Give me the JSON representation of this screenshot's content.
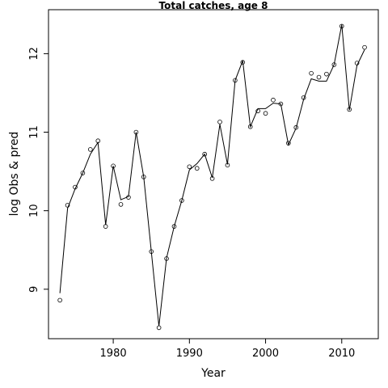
{
  "chart_data": {
    "type": "line",
    "title": "Total catches, age 8",
    "xlabel": "Year",
    "ylabel": "log Obs & pred",
    "xlim": [
      1971.5,
      2014.8
    ],
    "ylim": [
      8.37,
      12.56
    ],
    "x_ticks": [
      1980,
      1990,
      2000,
      2010
    ],
    "y_ticks": [
      9,
      10,
      11,
      12
    ],
    "grid": false,
    "series": [
      {
        "name": "",
        "style": "points",
        "x": [
          1973,
          1974,
          1975,
          1976,
          1977,
          1978,
          1979,
          1980,
          1981,
          1982,
          1983,
          1984,
          1985,
          1986,
          1987,
          1988,
          1989,
          1990,
          1991,
          1992,
          1993,
          1994,
          1995,
          1996,
          1997,
          1998,
          1999,
          2000,
          2001,
          2002,
          2003,
          2004,
          2005,
          2006,
          2007,
          2008,
          2009,
          2010,
          2011,
          2012,
          2013
        ],
        "values": [
          8.86,
          10.07,
          10.3,
          10.48,
          10.78,
          10.89,
          9.8,
          10.57,
          10.08,
          10.17,
          11.0,
          10.43,
          9.48,
          8.51,
          9.39,
          9.8,
          10.13,
          10.56,
          10.54,
          10.72,
          10.41,
          11.13,
          10.58,
          11.66,
          11.89,
          11.07,
          11.27,
          11.24,
          11.41,
          11.36,
          10.86,
          11.06,
          11.44,
          11.75,
          11.7,
          11.74,
          11.86,
          12.35,
          11.29,
          11.88,
          12.08
        ]
      },
      {
        "name": "",
        "style": "line",
        "x": [
          1973,
          1974,
          1975,
          1976,
          1977,
          1978,
          1979,
          1980,
          1981,
          1982,
          1983,
          1984,
          1985,
          1986,
          1987,
          1988,
          1989,
          1990,
          1991,
          1992,
          1993,
          1994,
          1995,
          1996,
          1997,
          1998,
          1999,
          2000,
          2001,
          2002,
          2003,
          2004,
          2005,
          2006,
          2007,
          2008,
          2009,
          2010,
          2011,
          2012,
          2013
        ],
        "values": [
          8.95,
          10.03,
          10.28,
          10.48,
          10.72,
          10.87,
          9.82,
          10.57,
          10.14,
          10.18,
          11.0,
          10.43,
          9.48,
          8.53,
          9.4,
          9.8,
          10.13,
          10.52,
          10.6,
          10.72,
          10.42,
          11.1,
          10.59,
          11.66,
          11.91,
          11.07,
          11.3,
          11.3,
          11.37,
          11.36,
          10.84,
          11.05,
          11.42,
          11.68,
          11.65,
          11.65,
          11.86,
          12.37,
          11.28,
          11.85,
          12.05
        ]
      }
    ]
  }
}
